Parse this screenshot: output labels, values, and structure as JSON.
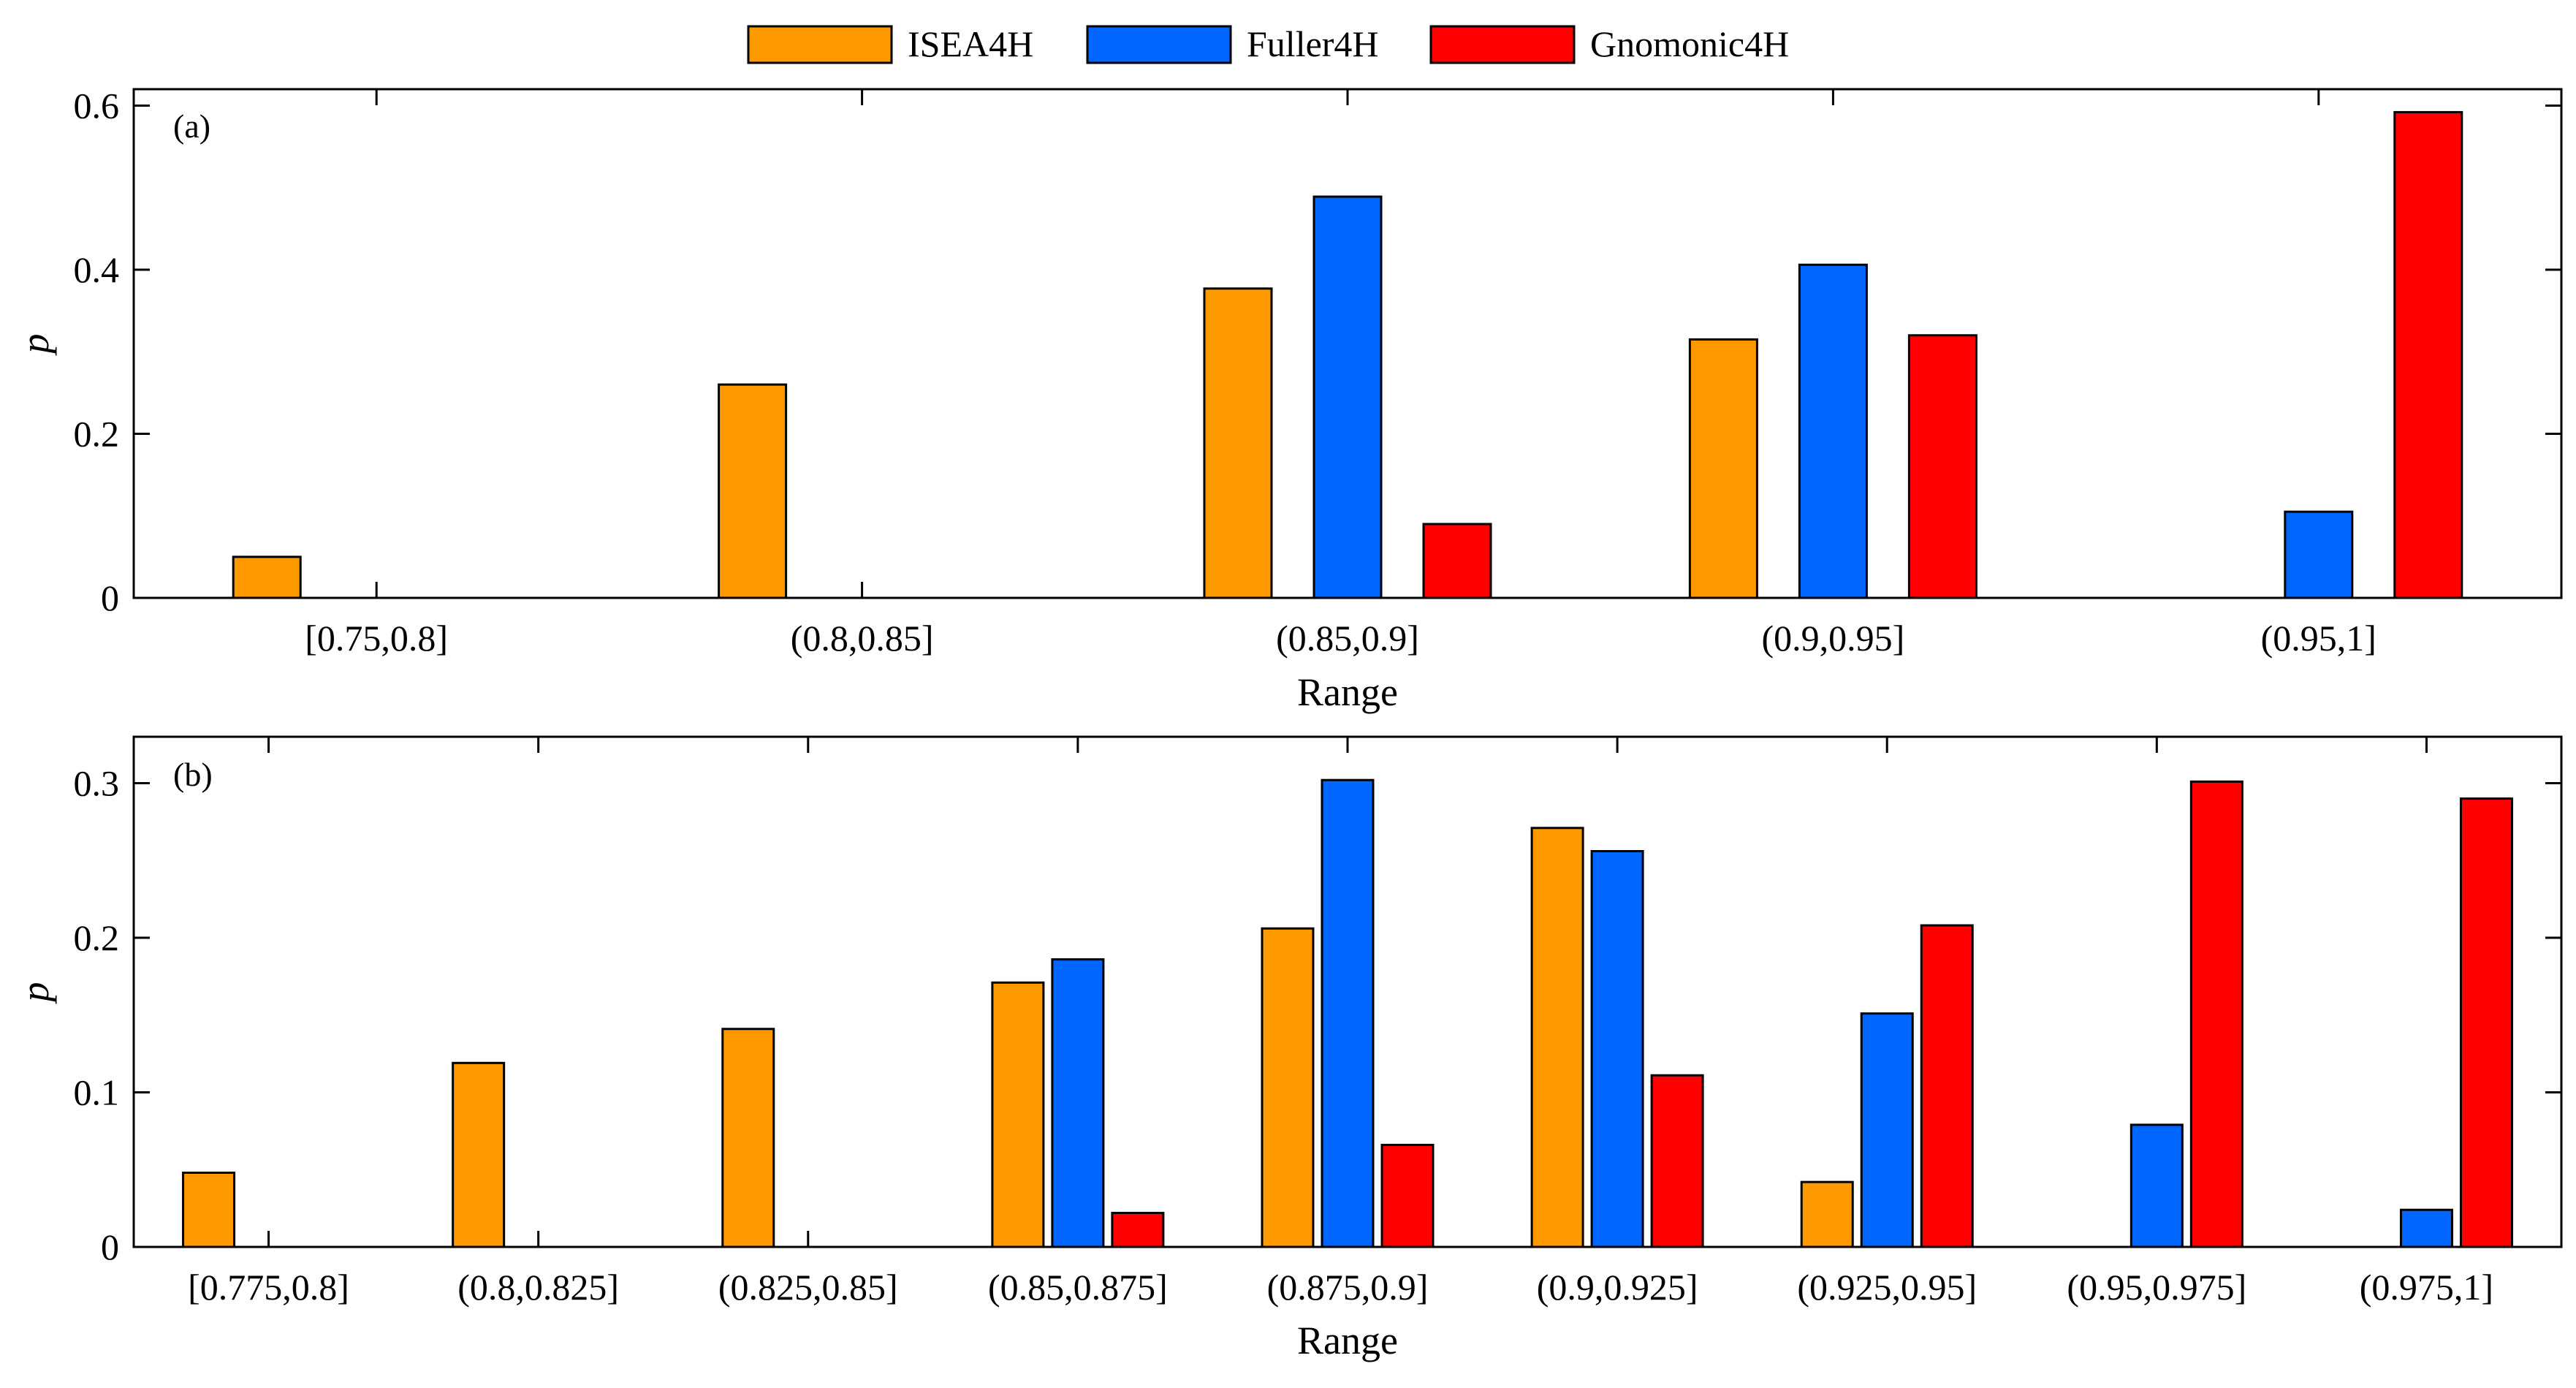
{
  "legend": {
    "entries": [
      {
        "name": "ISEA4H",
        "color": "#FF9900"
      },
      {
        "name": "Fuller4H",
        "color": "#0066FF"
      },
      {
        "name": "Gnomonic4H",
        "color": "#FF0000"
      }
    ]
  },
  "chart_data": [
    {
      "type": "bar",
      "panel_label": "(a)",
      "xlabel": "Range",
      "ylabel": "p",
      "ylim": [
        0,
        0.62
      ],
      "yticks": [
        0,
        0.2,
        0.4,
        0.6
      ],
      "ytick_labels": [
        "0",
        "0.2",
        "0.4",
        "0.6"
      ],
      "categories": [
        "[0.75,0.8]",
        "(0.8,0.85]",
        "(0.85,0.9]",
        "(0.9,0.95]",
        "(0.95,1]"
      ],
      "series": [
        {
          "name": "ISEA4H",
          "values": [
            0.05,
            0.26,
            0.377,
            0.315,
            0
          ]
        },
        {
          "name": "Fuller4H",
          "values": [
            0,
            0,
            0.489,
            0.406,
            0.105
          ]
        },
        {
          "name": "Gnomonic4H",
          "values": [
            0,
            0,
            0.09,
            0.32,
            0.592
          ]
        }
      ]
    },
    {
      "type": "bar",
      "panel_label": "(b)",
      "xlabel": "Range",
      "ylabel": "p",
      "ylim": [
        0,
        0.33
      ],
      "yticks": [
        0,
        0.1,
        0.2,
        0.3
      ],
      "ytick_labels": [
        "0",
        "0.1",
        "0.2",
        "0.3"
      ],
      "categories": [
        "[0.775,0.8]",
        "(0.8,0.825]",
        "(0.825,0.85]",
        "(0.85,0.875]",
        "(0.875,0.9]",
        "(0.9,0.925]",
        "(0.925,0.95]",
        "(0.95,0.975]",
        "(0.975,1]"
      ],
      "series": [
        {
          "name": "ISEA4H",
          "values": [
            0.048,
            0.119,
            0.141,
            0.171,
            0.206,
            0.271,
            0.042,
            0,
            0
          ]
        },
        {
          "name": "Fuller4H",
          "values": [
            0,
            0,
            0,
            0.186,
            0.302,
            0.256,
            0.151,
            0.079,
            0.024
          ]
        },
        {
          "name": "Gnomonic4H",
          "values": [
            0,
            0,
            0,
            0.022,
            0.066,
            0.111,
            0.208,
            0.301,
            0.29
          ]
        }
      ]
    }
  ]
}
